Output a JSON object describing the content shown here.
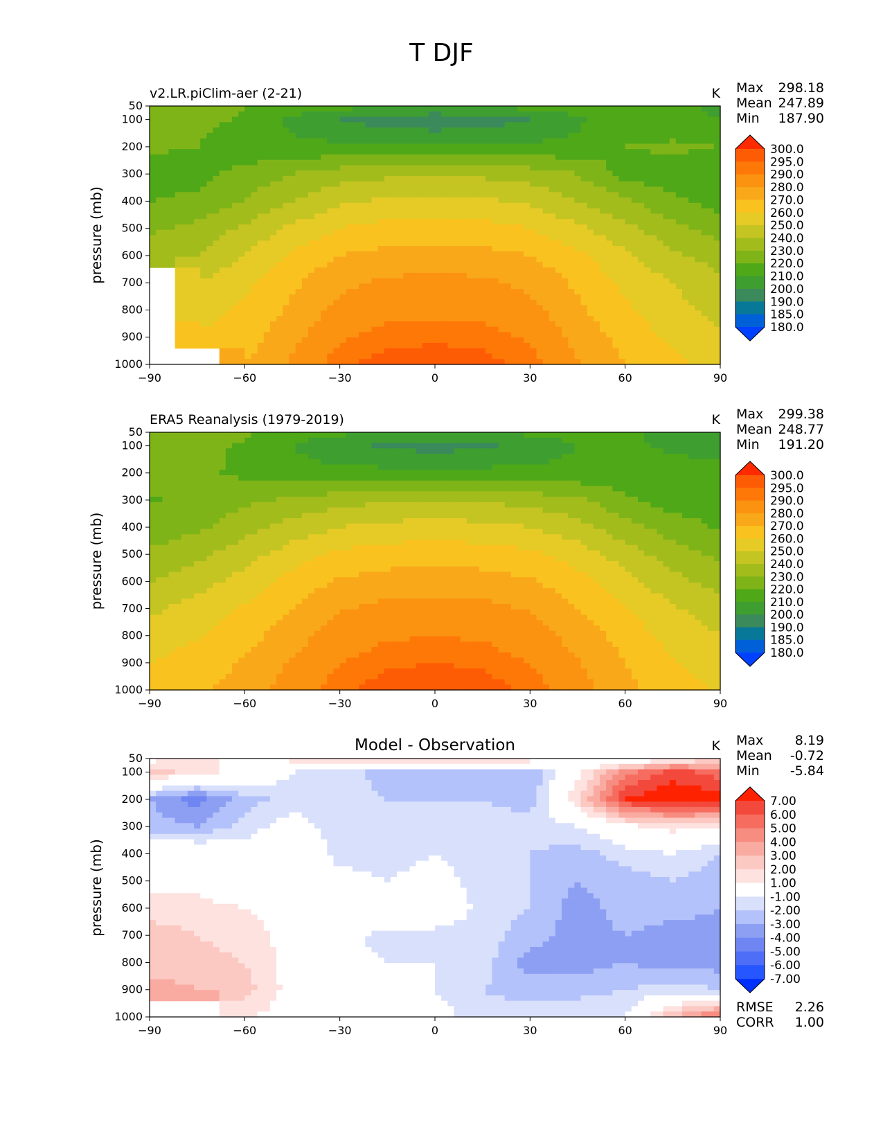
{
  "figure": {
    "title": "T DJF"
  },
  "colors": {
    "levels_a": [
      "#0040ff",
      "#0060d8",
      "#087898",
      "#3a8a5c",
      "#3f9e30",
      "#4ea818",
      "#7fb418",
      "#a2bc1c",
      "#c4c422",
      "#e6cb26",
      "#fac21e",
      "#f9a81a",
      "#fb9210",
      "#fe7808",
      "#fe5c04",
      "#ff2a00"
    ],
    "levels_diff": [
      "#0030ff",
      "#2656ff",
      "#4f6ef8",
      "#6f86f2",
      "#8d9ff2",
      "#b3c2fb",
      "#d9e0fb",
      "#ffffff",
      "#fde2e0",
      "#fcc8c2",
      "#f9aba2",
      "#f78c80",
      "#f66c5e",
      "#f3483c",
      "#ff2200"
    ]
  },
  "panels": [
    {
      "title_left": "v2.LR.piClim-aer (2-21)",
      "title_center": "",
      "units": "K",
      "stats": [
        {
          "label": "Max",
          "value": "298.18"
        },
        {
          "label": "Mean",
          "value": "247.89"
        },
        {
          "label": "Min",
          "value": "187.90"
        }
      ],
      "colorbar_ticks": [
        "300.0",
        "295.0",
        "290.0",
        "280.0",
        "270.0",
        "260.0",
        "250.0",
        "240.0",
        "230.0",
        "220.0",
        "210.0",
        "200.0",
        "190.0",
        "185.0",
        "180.0"
      ],
      "extra_stats": []
    },
    {
      "title_left": "ERA5 Reanalysis (1979-2019)",
      "title_center": "",
      "units": "K",
      "stats": [
        {
          "label": "Max",
          "value": "299.38"
        },
        {
          "label": "Mean",
          "value": "248.77"
        },
        {
          "label": "Min",
          "value": "191.20"
        }
      ],
      "colorbar_ticks": [
        "300.0",
        "295.0",
        "290.0",
        "280.0",
        "270.0",
        "260.0",
        "250.0",
        "240.0",
        "230.0",
        "220.0",
        "210.0",
        "200.0",
        "190.0",
        "185.0",
        "180.0"
      ],
      "extra_stats": []
    },
    {
      "title_left": "",
      "title_center": "Model - Observation",
      "units": "K",
      "stats": [
        {
          "label": "Max",
          "value": "8.19"
        },
        {
          "label": "Mean",
          "value": "-0.72"
        },
        {
          "label": "Min",
          "value": "-5.84"
        }
      ],
      "colorbar_ticks": [
        "7.00",
        "6.00",
        "5.00",
        "4.00",
        "3.00",
        "2.00",
        "1.00",
        "-1.00",
        "-2.00",
        "-3.00",
        "-4.00",
        "-5.00",
        "-6.00",
        "-7.00"
      ],
      "extra_stats": [
        {
          "label": "RMSE",
          "value": "2.26"
        },
        {
          "label": "CORR",
          "value": "1.00"
        }
      ]
    }
  ],
  "chart_data": [
    {
      "type": "heatmap",
      "title": "v2.LR.piClim-aer (2-21)",
      "xlabel": "",
      "ylabel": "pressure (mb)",
      "xlim": [
        -90,
        90
      ],
      "ylim": [
        1000,
        50
      ],
      "x_ticks": [
        "−90",
        "−60",
        "−30",
        "0",
        "30",
        "60",
        "90"
      ],
      "y_ticks": [
        "50",
        "100",
        "200",
        "300",
        "400",
        "500",
        "600",
        "700",
        "800",
        "900",
        "1000"
      ],
      "y_tick_values": [
        50,
        100,
        200,
        300,
        400,
        500,
        600,
        700,
        800,
        900,
        1000
      ],
      "x_tick_values": [
        -90,
        -60,
        -30,
        0,
        30,
        60,
        90
      ],
      "x": [
        -90,
        -75,
        -60,
        -45,
        -30,
        -15,
        0,
        15,
        30,
        45,
        60,
        75,
        90
      ],
      "y": [
        50,
        100,
        200,
        300,
        400,
        500,
        600,
        700,
        800,
        900,
        1000
      ],
      "z": [
        [
          230,
          227,
          220,
          215,
          213,
          212,
          211,
          212,
          213,
          215,
          218,
          212,
          208
        ],
        [
          227,
          224,
          218,
          208,
          200,
          195,
          192,
          195,
          200,
          208,
          216,
          213,
          210
        ],
        [
          222,
          220,
          213,
          212,
          212,
          212,
          212,
          212,
          212,
          213,
          220,
          222,
          220
        ],
        [
          214,
          216,
          224,
          230,
          235,
          238,
          239,
          238,
          235,
          230,
          216,
          214,
          214
        ],
        [
          220,
          223,
          230,
          240,
          248,
          252,
          253,
          252,
          248,
          240,
          232,
          222,
          216
        ],
        [
          228,
          233,
          242,
          252,
          260,
          264,
          265,
          264,
          260,
          252,
          243,
          233,
          225
        ],
        [
          235,
          240,
          250,
          262,
          270,
          273,
          274,
          273,
          270,
          262,
          252,
          242,
          235
        ],
        [
          null,
          250,
          258,
          268,
          278,
          282,
          283,
          282,
          278,
          268,
          258,
          250,
          243
        ],
        [
          null,
          255,
          262,
          272,
          283,
          287,
          288,
          287,
          283,
          272,
          262,
          253,
          247
        ],
        [
          null,
          262,
          265,
          277,
          289,
          293,
          294,
          293,
          289,
          277,
          266,
          258,
          252
        ],
        [
          null,
          null,
          270,
          282,
          294,
          298,
          298,
          297,
          293,
          281,
          270,
          262,
          257
        ]
      ],
      "colorbar_levels": [
        180,
        185,
        190,
        200,
        210,
        220,
        230,
        240,
        250,
        260,
        270,
        280,
        290,
        295,
        300
      ]
    },
    {
      "type": "heatmap",
      "title": "ERA5 Reanalysis (1979-2019)",
      "xlabel": "",
      "ylabel": "pressure (mb)",
      "xlim": [
        -90,
        90
      ],
      "ylim": [
        1000,
        50
      ],
      "x_ticks": [
        "−90",
        "−60",
        "−30",
        "0",
        "30",
        "60",
        "90"
      ],
      "y_ticks": [
        "50",
        "100",
        "200",
        "300",
        "400",
        "500",
        "600",
        "700",
        "800",
        "900",
        "1000"
      ],
      "y_tick_values": [
        50,
        100,
        200,
        300,
        400,
        500,
        600,
        700,
        800,
        900,
        1000
      ],
      "x_tick_values": [
        -90,
        -60,
        -30,
        0,
        30,
        60,
        90
      ],
      "x": [
        -90,
        -75,
        -60,
        -45,
        -30,
        -15,
        0,
        15,
        30,
        45,
        60,
        75,
        90
      ],
      "y": [
        50,
        100,
        200,
        300,
        400,
        500,
        600,
        700,
        800,
        900,
        1000
      ],
      "z": [
        [
          230,
          228,
          222,
          214,
          212,
          211,
          210,
          211,
          212,
          214,
          212,
          206,
          204
        ],
        [
          226,
          224,
          218,
          210,
          203,
          198,
          196,
          198,
          203,
          210,
          212,
          208,
          206
        ],
        [
          224,
          222,
          218,
          213,
          213,
          213,
          213,
          213,
          213,
          213,
          214,
          214,
          214
        ],
        [
          219,
          222,
          228,
          232,
          236,
          239,
          240,
          239,
          236,
          232,
          222,
          215,
          214
        ],
        [
          224,
          228,
          236,
          244,
          250,
          253,
          254,
          253,
          250,
          244,
          234,
          225,
          219
        ],
        [
          232,
          237,
          246,
          255,
          262,
          265,
          266,
          265,
          262,
          255,
          245,
          235,
          228
        ],
        [
          240,
          246,
          254,
          264,
          271,
          274,
          275,
          274,
          271,
          264,
          254,
          243,
          236
        ],
        [
          248,
          254,
          261,
          270,
          279,
          283,
          284,
          283,
          279,
          270,
          261,
          251,
          245
        ],
        [
          254,
          259,
          266,
          276,
          285,
          289,
          290,
          289,
          285,
          276,
          266,
          256,
          250
        ],
        [
          260,
          265,
          271,
          281,
          290,
          294,
          295,
          294,
          290,
          281,
          270,
          261,
          256
        ],
        [
          264,
          268,
          274,
          285,
          294,
          298,
          299,
          298,
          294,
          284,
          273,
          264,
          259
        ]
      ],
      "colorbar_levels": [
        180,
        185,
        190,
        200,
        210,
        220,
        230,
        240,
        250,
        260,
        270,
        280,
        290,
        295,
        300
      ]
    },
    {
      "type": "heatmap",
      "title": "Model - Observation",
      "xlabel": "",
      "ylabel": "pressure (mb)",
      "xlim": [
        -90,
        90
      ],
      "ylim": [
        1000,
        50
      ],
      "x_ticks": [
        "−90",
        "−60",
        "−30",
        "0",
        "30",
        "60",
        "90"
      ],
      "y_ticks": [
        "50",
        "100",
        "200",
        "300",
        "400",
        "500",
        "600",
        "700",
        "800",
        "900",
        "1000"
      ],
      "y_tick_values": [
        50,
        100,
        200,
        300,
        400,
        500,
        600,
        700,
        800,
        900,
        1000
      ],
      "x_tick_values": [
        -90,
        -60,
        -30,
        0,
        30,
        60,
        90
      ],
      "x": [
        -90,
        -75,
        -60,
        -45,
        -30,
        -15,
        0,
        15,
        30,
        45,
        60,
        75,
        90
      ],
      "y": [
        50,
        100,
        200,
        300,
        400,
        500,
        600,
        700,
        800,
        900,
        1000
      ],
      "z": [
        [
          0.5,
          1.5,
          0.5,
          1.5,
          2.0,
          2.0,
          2.5,
          3.0,
          2.0,
          -0.5,
          -1.0,
          0.5,
          1.5
        ],
        [
          2.5,
          1.5,
          0.5,
          -1.0,
          -1.5,
          -2.5,
          -2.5,
          -2.5,
          -3.0,
          0.5,
          4.5,
          6.5,
          5.5
        ],
        [
          -3.0,
          -4.5,
          -2.5,
          -1.5,
          -1.5,
          -2.0,
          -2.0,
          -2.0,
          -2.5,
          2.0,
          7.0,
          8.0,
          7.5
        ],
        [
          -2.5,
          -3.0,
          -1.5,
          -0.5,
          -1.5,
          -1.5,
          -1.5,
          -1.5,
          -1.5,
          -1.0,
          0.5,
          1.5,
          1.0
        ],
        [
          0.5,
          0.5,
          -0.5,
          0.5,
          -1.5,
          -1.5,
          -1.0,
          -1.5,
          -2.0,
          -2.5,
          -1.5,
          -1.0,
          -2.0
        ],
        [
          0.5,
          0.5,
          -0.5,
          0.5,
          -0.5,
          -1.0,
          -0.5,
          -1.5,
          -2.0,
          -3.0,
          -2.5,
          -2.0,
          -2.5
        ],
        [
          1.5,
          1.5,
          1.0,
          0.5,
          0.5,
          0.5,
          0.5,
          -1.5,
          -2.0,
          -3.5,
          -2.5,
          -2.5,
          -3.0
        ],
        [
          2.5,
          2.0,
          1.5,
          0.5,
          -0.5,
          -1.5,
          -1.5,
          -1.5,
          -2.5,
          -3.5,
          -3.0,
          -3.5,
          -3.5
        ],
        [
          2.5,
          2.5,
          2.0,
          0.5,
          -0.5,
          -1.0,
          -1.0,
          -1.5,
          -3.5,
          -3.5,
          -3.0,
          -3.5,
          -3.5
        ],
        [
          3.5,
          3.0,
          2.5,
          0.5,
          -0.5,
          -1.0,
          -1.0,
          -2.0,
          -2.5,
          -2.5,
          -2.0,
          -1.5,
          -2.0
        ],
        [
          null,
          null,
          1.0,
          0.5,
          -0.5,
          -0.5,
          -0.5,
          -1.5,
          -1.5,
          -1.0,
          -1.0,
          3.0,
          5.5
        ]
      ],
      "colorbar_levels": [
        -7,
        -6,
        -5,
        -4,
        -3,
        -2,
        -1,
        1,
        2,
        3,
        4,
        5,
        6,
        7
      ]
    }
  ]
}
